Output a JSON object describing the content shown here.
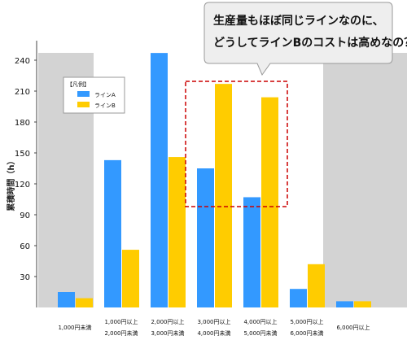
{
  "chart_data": {
    "type": "bar",
    "ylabel": "累積時間（h）",
    "ylim": [
      0,
      255
    ],
    "yticks": [
      30,
      60,
      90,
      120,
      150,
      180,
      210,
      240
    ],
    "categories": [
      [
        "1,000円未満"
      ],
      [
        "1,000円以上",
        "2,000円未満"
      ],
      [
        "2,000円以上",
        "3,000円未満"
      ],
      [
        "3,000円以上",
        "4,000円未満"
      ],
      [
        "4,000円以上",
        "5,000円未満"
      ],
      [
        "5,000円以上",
        "6,000円未満"
      ],
      [
        "6,000円以上"
      ]
    ],
    "series": [
      {
        "name": "ラインA",
        "color": "#3399ff",
        "values": [
          15,
          143,
          247,
          135,
          107,
          18,
          6
        ]
      },
      {
        "name": "ラインB",
        "color": "#ffcc00",
        "values": [
          9,
          56,
          146,
          217,
          204,
          42,
          6
        ]
      }
    ],
    "shaded_categories": [
      0,
      6
    ],
    "highlight_categories": [
      3,
      4
    ],
    "legend": {
      "title": "【凡例】",
      "position": "top-left"
    },
    "grid": false
  },
  "callout": {
    "lines": [
      "生産量もほぼ同じラインなのに、",
      "どうしてラインBのコストは高めなの？"
    ]
  },
  "colors": {
    "shade": "#d3d3d3",
    "axis": "#444444",
    "highlight_border": "#cc0000",
    "callout_bg": "#eeeeee"
  }
}
